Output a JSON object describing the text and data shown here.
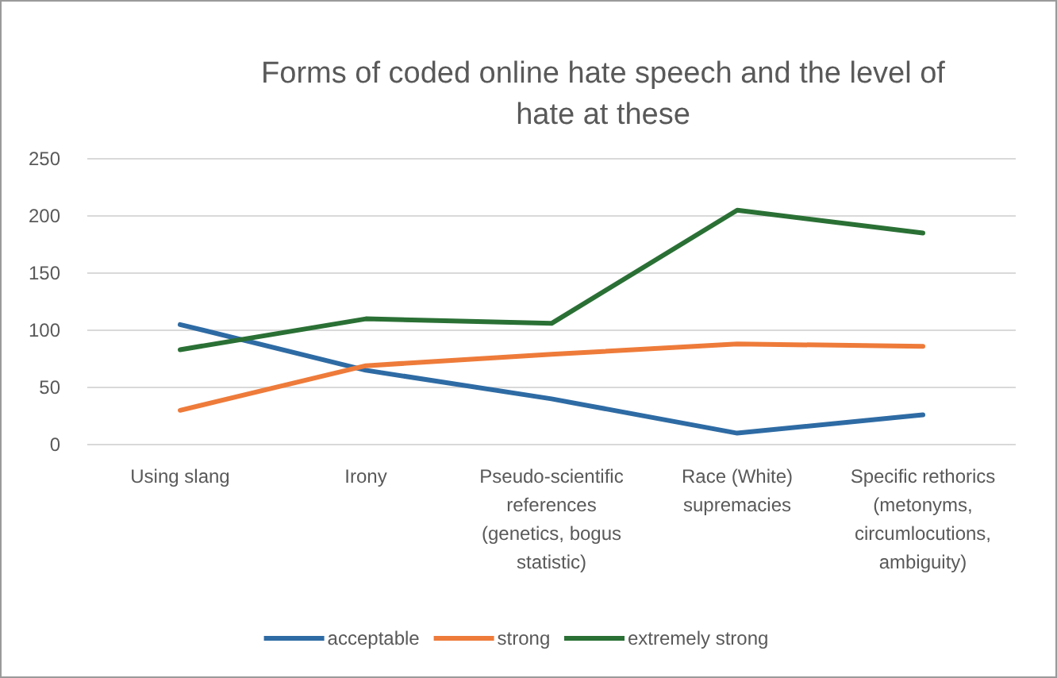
{
  "chart_data": {
    "type": "line",
    "title": "Forms of coded online hate speech and the level of hate at these",
    "categories": [
      "Using slang",
      "Irony",
      "Pseudo-scientific references (genetics, bogus statistic)",
      "Race (White) supremacies",
      "Specific rethorics (metonyms, circumlocutions, ambiguity)"
    ],
    "series": [
      {
        "name": "acceptable",
        "color": "#2e6ba4",
        "values": [
          105,
          65,
          40,
          10,
          26
        ]
      },
      {
        "name": "strong",
        "color": "#ee7b3a",
        "values": [
          30,
          69,
          79,
          88,
          86
        ]
      },
      {
        "name": "extremely strong",
        "color": "#2a7035",
        "values": [
          83,
          110,
          106,
          205,
          185
        ]
      }
    ],
    "ylim": [
      0,
      250
    ],
    "yticks": [
      0,
      50,
      100,
      150,
      200,
      250
    ],
    "grid": "y",
    "legend": "bottom",
    "marker": "none",
    "line_style": "solid"
  }
}
